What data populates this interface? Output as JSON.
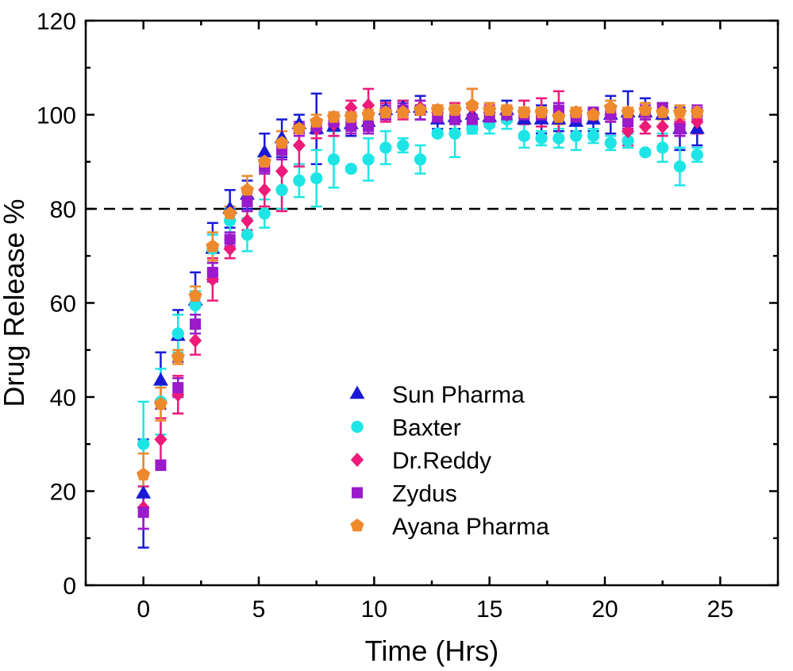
{
  "chart_data": {
    "type": "scatter",
    "xlabel": "Time (Hrs)",
    "ylabel": "Drug Release %",
    "xlim": [
      -2.5,
      27.5
    ],
    "ylim": [
      0,
      120
    ],
    "x_ticks": [
      "0",
      "5",
      "10",
      "15",
      "20",
      "25"
    ],
    "y_ticks": [
      "0",
      "20",
      "40",
      "60",
      "80",
      "100",
      "120"
    ],
    "reference_line": {
      "y": 80,
      "style": "dashed",
      "color": "#000000"
    },
    "grid": false,
    "legend_position": "bottom-center",
    "x": [
      0,
      0.75,
      1.5,
      2.25,
      3,
      3.75,
      4.5,
      5.25,
      6,
      6.75,
      7.5,
      8.25,
      9,
      9.75,
      10.5,
      11.25,
      12,
      12.75,
      13.5,
      14.25,
      15,
      15.75,
      16.5,
      17.25,
      18,
      18.75,
      19.5,
      20.25,
      21,
      21.75,
      22.5,
      23.25,
      24
    ],
    "series": [
      {
        "name": "Sun Pharma",
        "marker": "triangle",
        "color": "#1a1ad6",
        "values": [
          19.5,
          43.5,
          53,
          60.5,
          71.5,
          80,
          83,
          92,
          95,
          98,
          97,
          97.5,
          98,
          98.5,
          101,
          101.5,
          101.5,
          99,
          99.5,
          100,
          99.5,
          101,
          99,
          99,
          99,
          98.5,
          99,
          100,
          100.5,
          100.5,
          100,
          97,
          97
        ],
        "errors": [
          11.5,
          6,
          5.5,
          6,
          5.5,
          4,
          3,
          4,
          4,
          2,
          7.5,
          2,
          2.5,
          1.5,
          2,
          1.5,
          2.5,
          2,
          2.5,
          2,
          2,
          2,
          4,
          3,
          2.5,
          2,
          2.5,
          4,
          4.5,
          3,
          2.5,
          4.5,
          3.5
        ]
      },
      {
        "name": "Baxter",
        "marker": "circle",
        "color": "#1ee5e5",
        "values": [
          30,
          39,
          53.5,
          59.5,
          71.5,
          77.5,
          74.5,
          79,
          84,
          86,
          86.5,
          90.5,
          88.5,
          90.5,
          93,
          93.5,
          90.5,
          96,
          96,
          97,
          98,
          99,
          95.5,
          95,
          95,
          95.5,
          95.5,
          94,
          94.5,
          92,
          93,
          89,
          91.5
        ],
        "errors": [
          9,
          7,
          4,
          3,
          3,
          2.5,
          3.5,
          3,
          4,
          3.5,
          6,
          6,
          0.5,
          4.5,
          3.5,
          1.5,
          3,
          0.5,
          5,
          1,
          2,
          2,
          2.5,
          1.5,
          2,
          3,
          1.5,
          1.5,
          1.5,
          0.5,
          3,
          4,
          1.5
        ]
      },
      {
        "name": "Dr.Reddy",
        "marker": "diamond",
        "color": "#ee1a7a",
        "values": [
          16.5,
          31,
          40.5,
          52,
          65,
          71.5,
          77.5,
          84,
          88,
          93.5,
          97,
          98,
          101.5,
          102,
          100.5,
          101,
          101.5,
          100.5,
          101,
          101.5,
          100.5,
          100,
          100.5,
          100.5,
          100,
          100,
          100,
          100,
          96.5,
          97.5,
          97.5,
          98,
          98.5
        ],
        "errors": [
          4.5,
          4.5,
          4,
          3,
          4.5,
          2,
          2,
          3.5,
          8.5,
          4.5,
          2,
          2.5,
          1.5,
          3.5,
          2,
          2,
          1.5,
          1.5,
          1.5,
          4,
          1.5,
          1.5,
          2.5,
          3,
          5,
          1.5,
          1.5,
          1.5,
          3,
          1.5,
          2,
          2.5,
          2.5
        ]
      },
      {
        "name": "Zydus",
        "marker": "square",
        "color": "#9b1acc",
        "values": [
          15.5,
          25.5,
          42,
          55.5,
          66.5,
          73.5,
          81.5,
          89,
          92.5,
          97,
          97.5,
          98.5,
          97.5,
          97.5,
          100.5,
          101,
          101,
          99.5,
          99,
          99,
          99.5,
          100,
          100,
          100,
          101,
          99.5,
          100.5,
          100,
          98.5,
          100.5,
          101.5,
          97,
          100.5
        ],
        "errors": [
          3.5,
          1,
          2,
          2,
          2,
          1.5,
          2,
          1.5,
          2,
          1.5,
          1.5,
          1.5,
          1.5,
          1.5,
          1.5,
          1.5,
          2,
          1,
          1,
          1,
          1.5,
          1.5,
          1.5,
          1,
          1.5,
          1,
          1,
          1.5,
          1.5,
          1.5,
          1,
          1.5,
          1.5
        ]
      },
      {
        "name": "Ayana Pharma",
        "marker": "pentagon",
        "color": "#ee8a2e",
        "values": [
          23.5,
          38.5,
          48.5,
          61.5,
          72,
          79,
          84,
          90,
          94,
          97,
          98.5,
          99.5,
          99.5,
          100,
          100.5,
          100.5,
          101,
          101,
          101,
          102,
          101,
          101,
          100.5,
          100.5,
          99.5,
          100.5,
          100,
          101.5,
          100.5,
          101,
          100.5,
          100.5,
          100.5
        ],
        "errors": [
          4.5,
          3.5,
          1.5,
          2,
          3,
          1.5,
          3,
          1.5,
          2.5,
          1,
          1.5,
          1,
          1,
          1,
          1,
          1,
          1,
          1,
          1,
          3.5,
          1.5,
          1,
          1,
          1,
          1.5,
          1,
          1,
          1.5,
          1,
          1.5,
          1.5,
          1.5,
          1
        ]
      }
    ]
  }
}
